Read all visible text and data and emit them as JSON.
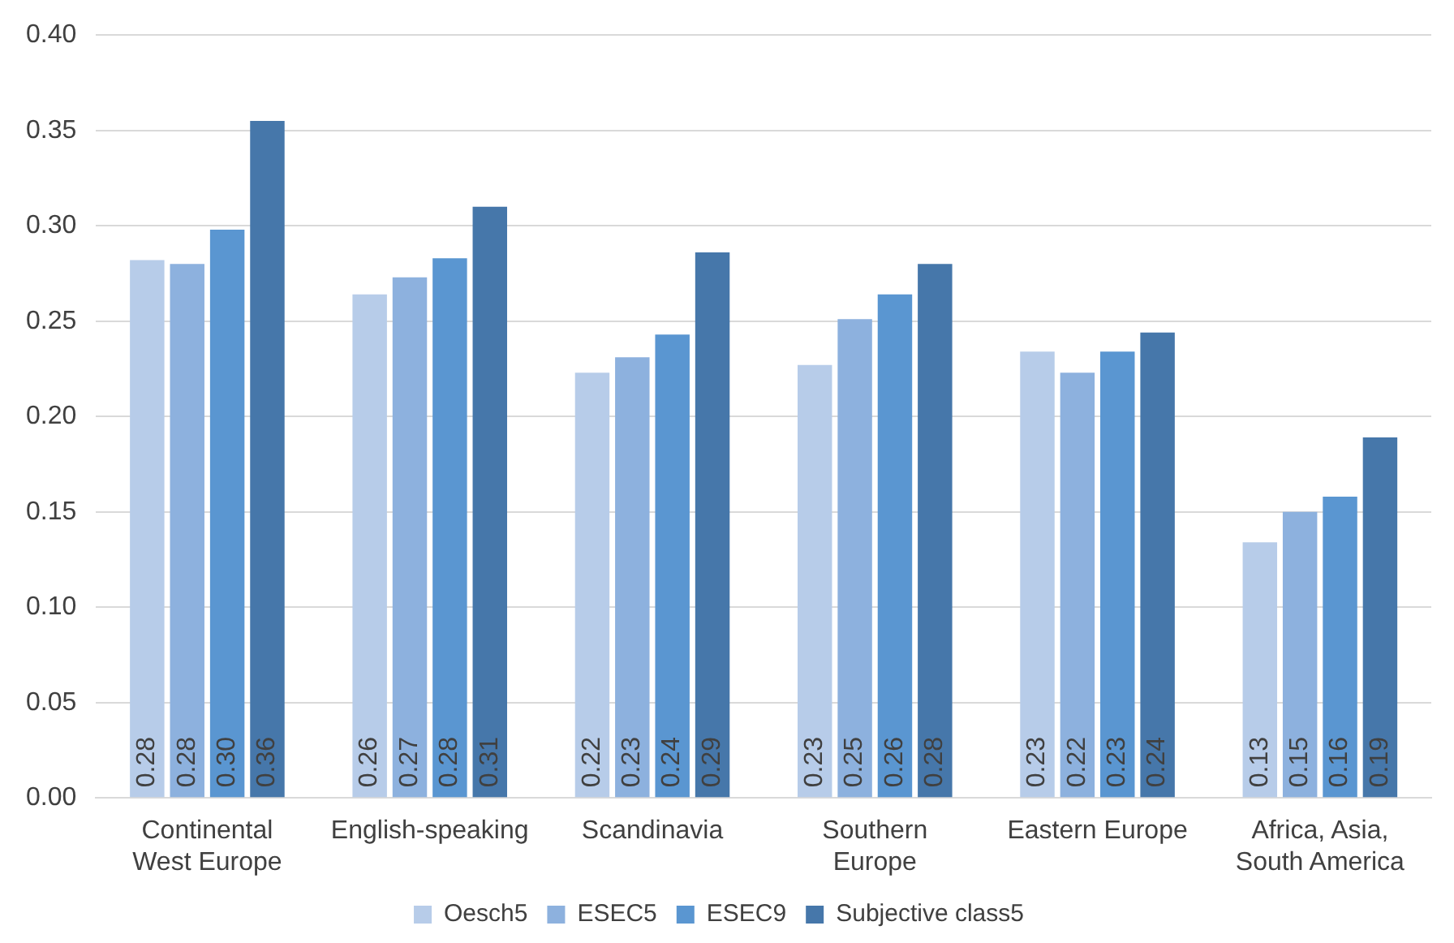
{
  "chart_data": {
    "type": "bar",
    "categories": [
      "Continental West Europe",
      "English-speaking",
      "Scandinavia",
      "Southern Europe",
      "Eastern Europe",
      "Africa, Asia, South America"
    ],
    "series": [
      {
        "name": "Oesch5",
        "color": "#b7cce9",
        "values": [
          0.282,
          0.264,
          0.223,
          0.227,
          0.234,
          0.134
        ],
        "value_labels": [
          "0.28",
          "0.26",
          "0.22",
          "0.23",
          "0.23",
          "0.13"
        ]
      },
      {
        "name": "ESEC5",
        "color": "#8db1de",
        "values": [
          0.28,
          0.273,
          0.231,
          0.251,
          0.223,
          0.15
        ],
        "value_labels": [
          "0.28",
          "0.27",
          "0.23",
          "0.25",
          "0.22",
          "0.15"
        ]
      },
      {
        "name": "ESEC9",
        "color": "#5a96d1",
        "values": [
          0.298,
          0.283,
          0.243,
          0.264,
          0.234,
          0.158
        ],
        "value_labels": [
          "0.30",
          "0.28",
          "0.24",
          "0.26",
          "0.23",
          "0.16"
        ]
      },
      {
        "name": "Subjective class5",
        "color": "#4677aa",
        "values": [
          0.355,
          0.31,
          0.286,
          0.28,
          0.244,
          0.189
        ],
        "value_labels": [
          "0.36",
          "0.31",
          "0.29",
          "0.28",
          "0.24",
          "0.19"
        ]
      }
    ],
    "ylim": [
      0,
      0.4
    ],
    "yticks": [
      {
        "value": 0,
        "label": "0.00"
      },
      {
        "value": 0.05,
        "label": "0.05"
      },
      {
        "value": 0.1,
        "label": "0.10"
      },
      {
        "value": 0.15,
        "label": "0.15"
      },
      {
        "value": 0.2,
        "label": "0.20"
      },
      {
        "value": 0.25,
        "label": "0.25"
      },
      {
        "value": 0.3,
        "label": "0.30"
      },
      {
        "value": 0.35,
        "label": "0.35"
      },
      {
        "value": 0.4,
        "label": "0.40"
      }
    ],
    "grid": "y",
    "legend": "bottom"
  }
}
